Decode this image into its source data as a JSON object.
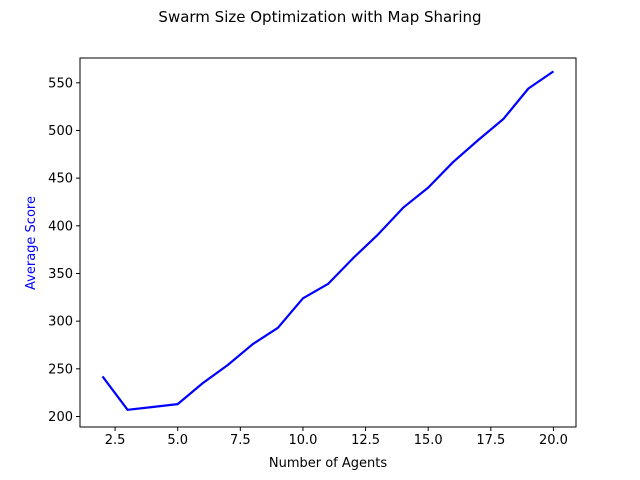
{
  "chart_data": {
    "type": "line",
    "title": "Swarm Size Optimization with Map Sharing",
    "xlabel": "Number of Agents",
    "ylabel": "Average Score",
    "ylabel_color": "#0000ff",
    "line_color": "#0000ff",
    "xlim": [
      1.1,
      20.9
    ],
    "ylim": [
      189,
      576
    ],
    "x_ticks": [
      2.5,
      5.0,
      7.5,
      10.0,
      12.5,
      15.0,
      17.5,
      20.0
    ],
    "x_tick_labels": [
      "2.5",
      "5.0",
      "7.5",
      "10.0",
      "12.5",
      "15.0",
      "17.5",
      "20.0"
    ],
    "y_ticks": [
      200,
      250,
      300,
      350,
      400,
      450,
      500,
      550
    ],
    "y_tick_labels": [
      "200",
      "250",
      "300",
      "350",
      "400",
      "450",
      "500",
      "550"
    ],
    "grid": false,
    "series": [
      {
        "x": [
          2,
          3,
          4,
          5,
          6,
          7,
          8,
          9,
          10,
          11,
          12,
          13,
          14,
          15,
          16,
          17,
          18,
          19,
          20
        ],
        "values": [
          242,
          207,
          210,
          213,
          235,
          254,
          276,
          293,
          324,
          339,
          366,
          391,
          419,
          440,
          467,
          490,
          512,
          544,
          562
        ]
      }
    ]
  }
}
